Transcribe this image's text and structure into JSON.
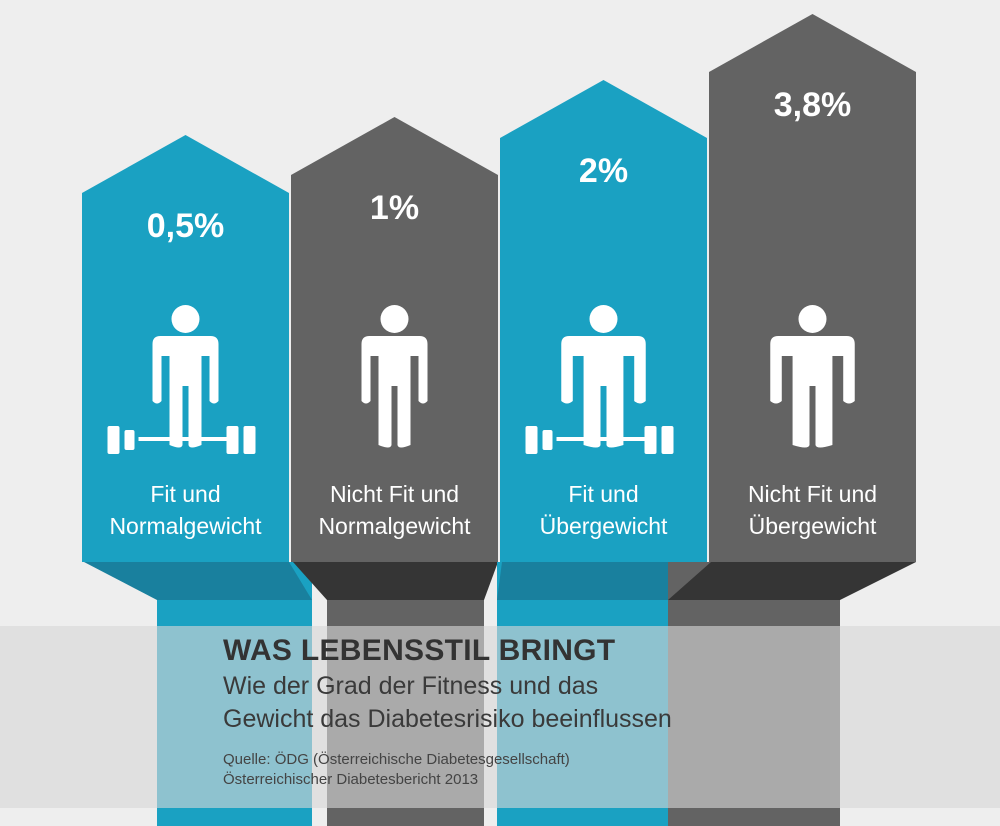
{
  "chart_data": {
    "type": "bar",
    "categories": [
      "Fit und Normalgewicht",
      "Nicht Fit und Normalgewicht",
      "Fit und Übergewicht",
      "Nicht Fit und Übergewicht"
    ],
    "category_lines": [
      [
        "Fit und",
        "Normalgewicht"
      ],
      [
        "Nicht Fit und",
        "Normalgewicht"
      ],
      [
        "Fit und",
        "Übergewicht"
      ],
      [
        "Nicht Fit und",
        "Übergewicht"
      ]
    ],
    "values": [
      0.5,
      1,
      2,
      3.8
    ],
    "value_labels": [
      "0,5%",
      "1%",
      "2%",
      "3,8%"
    ],
    "bar_colors": [
      "#1aa1c2",
      "#636363",
      "#1aa1c2",
      "#636363"
    ],
    "icons": [
      "person-barbell-icon",
      "person-icon",
      "wide-person-barbell-icon",
      "wide-person-icon"
    ],
    "title": "WAS LEBENSSTIL BRINGT",
    "subtitle_lines": [
      "Wie der Grad der Fitness und das",
      "Gewicht das Diabetesrisiko beeinflussen"
    ],
    "source_lines": [
      "Quelle: ÖDG (Österreichische Diabetesgesellschaft)",
      "Österreichischer Diabetesbericht 2013"
    ]
  },
  "colors": {
    "background": "#eeeeee",
    "blue": "#1aa1c2",
    "blue_dark": "#19809e",
    "gray": "#636363",
    "gray_dark": "#353535",
    "title_text": "#333333"
  }
}
